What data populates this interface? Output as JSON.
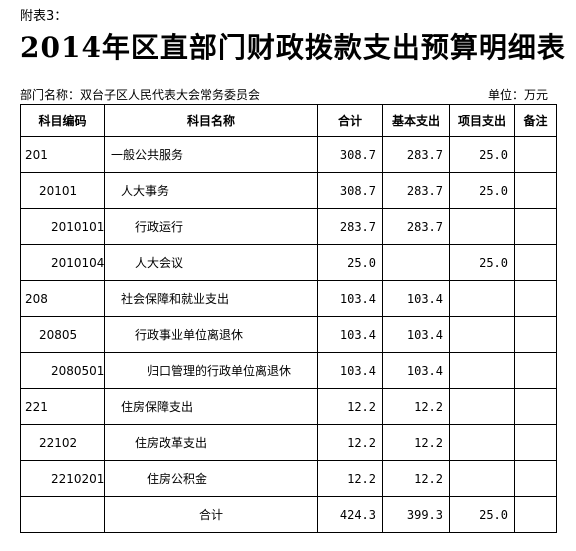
{
  "attachment_label": "附表3：",
  "title": "2014年区直部门财政拨款支出预算明细表",
  "department": "部门名称：双台子区人民代表大会常务委员会",
  "unit": "单位：万元",
  "headers": [
    "科目编码",
    "科目名称",
    "合计",
    "基本支出",
    "项目支出",
    "备注"
  ],
  "rows": [
    {
      "code": "201",
      "name": "一般公共服务",
      "total": "308.7",
      "basic": "283.7",
      "project": "25.0",
      "note": ""
    },
    {
      "code": "20101",
      "name": "人大事务",
      "total": "308.7",
      "basic": "283.7",
      "project": "25.0",
      "note": ""
    },
    {
      "code": "2010101",
      "name": "行政运行",
      "total": "283.7",
      "basic": "283.7",
      "project": "",
      "note": ""
    },
    {
      "code": "2010104",
      "name": "人大会议",
      "total": "25.0",
      "basic": "",
      "project": "25.0",
      "note": ""
    },
    {
      "code": "208",
      "name": "社会保障和就业支出",
      "total": "103.4",
      "basic": "103.4",
      "project": "",
      "note": ""
    },
    {
      "code": "20805",
      "name": "行政事业单位离退休",
      "total": "103.4",
      "basic": "103.4",
      "project": "",
      "note": ""
    },
    {
      "code": "2080501",
      "name": "归口管理的行政单位离退休",
      "total": "103.4",
      "basic": "103.4",
      "project": "",
      "note": ""
    },
    {
      "code": "221",
      "name": "住房保障支出",
      "total": "12.2",
      "basic": "12.2",
      "project": "",
      "note": ""
    },
    {
      "code": "22102",
      "name": "住房改革支出",
      "total": "12.2",
      "basic": "12.2",
      "project": "",
      "note": ""
    },
    {
      "code": "2210201",
      "name": "住房公积金",
      "total": "12.2",
      "basic": "12.2",
      "project": "",
      "note": ""
    },
    {
      "code": "",
      "name": "合计",
      "total": "424.3",
      "basic": "399.3",
      "project": "25.0",
      "note": ""
    }
  ]
}
